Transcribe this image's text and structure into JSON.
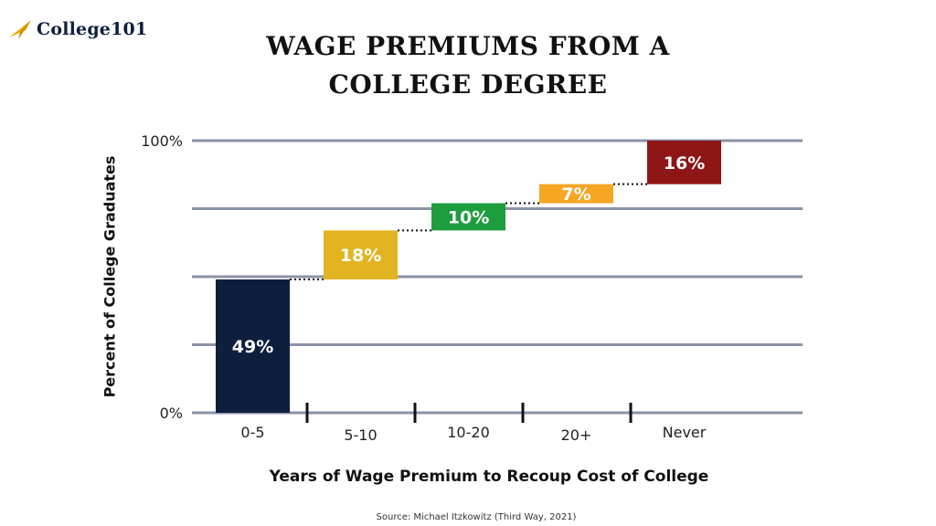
{
  "brand": {
    "logo_text": "College101",
    "logo_icon": "paper-plane-arrow-icon",
    "accent_color": "#e8a900"
  },
  "title_lines": [
    "WAGE PREMIUMS FROM A",
    "COLLEGE DEGREE"
  ],
  "source": "Source: Michael Itzkowitz (Third Way, 2021)",
  "chart_data": {
    "type": "bar",
    "subtype": "waterfall",
    "title": "WAGE PREMIUMS FROM A COLLEGE DEGREE",
    "xlabel": "Years of Wage Premium to Recoup Cost of College",
    "ylabel": "Percent of College Graduates",
    "categories": [
      "0-5",
      "5-10",
      "10-20",
      "20+",
      "Never"
    ],
    "values": [
      49,
      18,
      10,
      7,
      16
    ],
    "data_labels": [
      "49%",
      "18%",
      "10%",
      "7%",
      "16%"
    ],
    "colors": [
      "#0e1f3e",
      "#e2b422",
      "#1d9d3d",
      "#f6a623",
      "#8e1617"
    ],
    "ylim": [
      0,
      100
    ],
    "yticks": [
      {
        "value": 0,
        "label": "0%"
      },
      {
        "value": 25,
        "label": ""
      },
      {
        "value": 50,
        "label": ""
      },
      {
        "value": 75,
        "label": ""
      },
      {
        "value": 100,
        "label": "100%"
      }
    ],
    "grid": true,
    "legend": "none",
    "gridline_color": "#8a93a6",
    "connector_style": "dotted"
  }
}
